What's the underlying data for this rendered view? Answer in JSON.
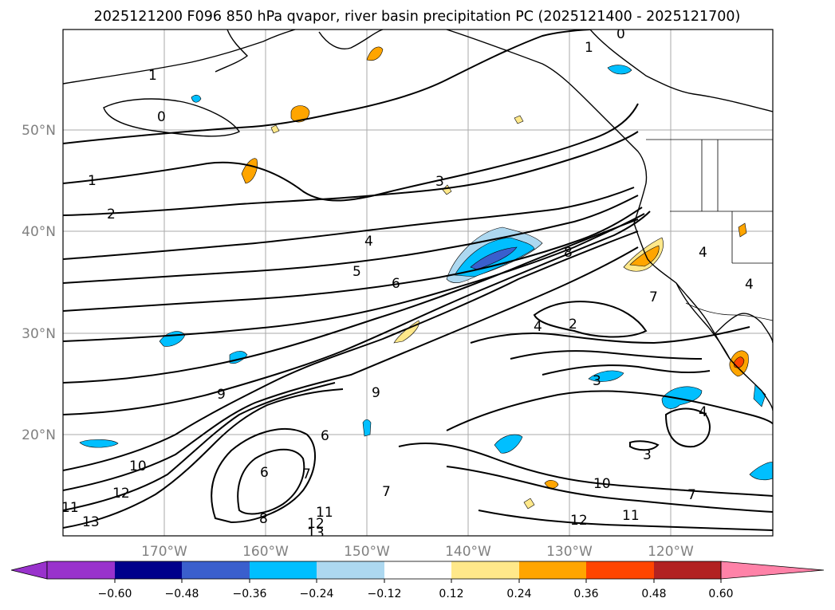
{
  "title": "2025121200 F096 850 hPa qvapor, river basin precipitation PC (2025121400 - 2025121700)",
  "map": {
    "lon_ticks": [
      "170°W",
      "160°W",
      "150°W",
      "140°W",
      "130°W",
      "120°W"
    ],
    "lat_ticks": [
      "50°N",
      "40°N",
      "30°N",
      "20°N"
    ],
    "contour_labels": [
      "0",
      "1",
      "1",
      "1",
      "0",
      "2",
      "3",
      "4",
      "5",
      "6",
      "8",
      "4",
      "2",
      "7",
      "3",
      "4",
      "3",
      "9",
      "9",
      "6",
      "6",
      "7",
      "10",
      "12",
      "11",
      "13",
      "8",
      "12",
      "13",
      "11",
      "7",
      "10",
      "11",
      "12",
      "4",
      "4",
      "7"
    ]
  },
  "colorbar": {
    "tick_labels": [
      "−0.60",
      "−0.48",
      "−0.36",
      "−0.24",
      "−0.12",
      "0.12",
      "0.24",
      "0.36",
      "0.48",
      "0.60"
    ],
    "colors": [
      "#9932cc",
      "#00008b",
      "#3a5fcd",
      "#00bfff",
      "#add8f0",
      "#ffffff",
      "#ffe88a",
      "#ffa500",
      "#ff4500",
      "#b22222",
      "#ff82a8"
    ]
  }
}
